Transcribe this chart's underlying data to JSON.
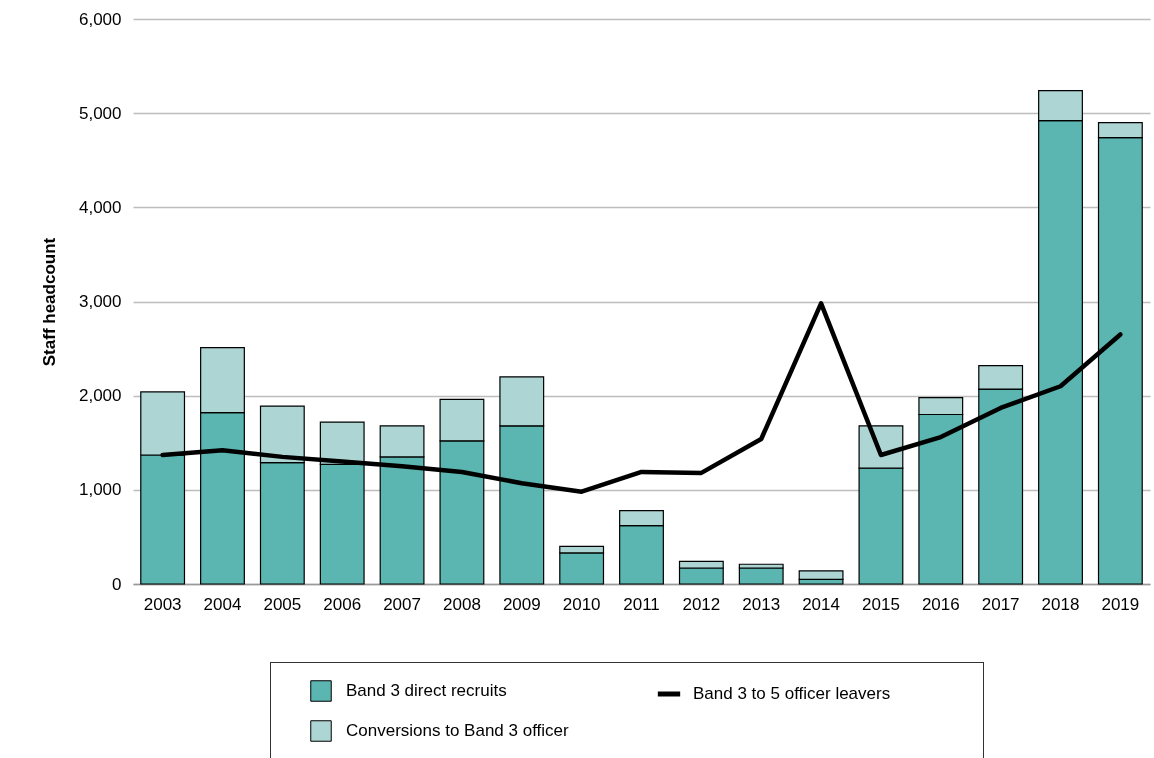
{
  "chart_data": {
    "type": "bar",
    "stacked": true,
    "ylabel": "Staff headcount",
    "categories": [
      "2003",
      "2004",
      "2005",
      "2006",
      "2007",
      "2008",
      "2009",
      "2010",
      "2011",
      "2012",
      "2013",
      "2014",
      "2015",
      "2016",
      "2017",
      "2018",
      "2019"
    ],
    "series": [
      {
        "name": "Band 3 direct recruits",
        "color": "#5bb6b1",
        "values": [
          1370,
          1820,
          1290,
          1270,
          1350,
          1520,
          1680,
          330,
          620,
          170,
          170,
          50,
          1230,
          1800,
          2070,
          4920,
          4740
        ]
      },
      {
        "name": "Conversions to Band 3 officer",
        "color": "#acd5d3",
        "values": [
          670,
          690,
          600,
          450,
          330,
          440,
          520,
          70,
          160,
          70,
          40,
          90,
          450,
          180,
          250,
          320,
          160
        ]
      },
      {
        "name": "Band 3 to 5 officer leavers",
        "type": "line",
        "color": "#000000",
        "values": [
          1370,
          1420,
          1350,
          1300,
          1250,
          1190,
          1070,
          980,
          1190,
          1180,
          1540,
          2980,
          1370,
          1560,
          1870,
          2100,
          2650
        ]
      }
    ],
    "ylim": [
      0,
      6000
    ],
    "yticks": [
      0,
      {
        "value": 1000,
        "label": "1,000"
      },
      {
        "value": 2000,
        "label": "2,000"
      },
      {
        "value": 3000,
        "label": "3,000"
      },
      {
        "value": 4000,
        "label": "4,000"
      },
      {
        "value": 5000,
        "label": "5,000"
      },
      {
        "value": 6000,
        "label": "6,000"
      }
    ],
    "grid": "y",
    "legend": "bottom"
  }
}
